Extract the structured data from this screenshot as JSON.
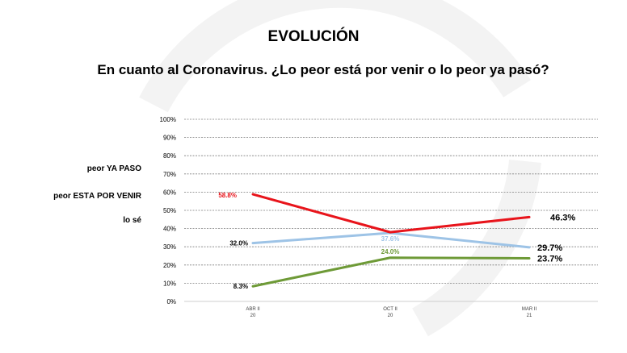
{
  "chart_data": {
    "type": "line",
    "title": "EVOLUCIÓN",
    "subtitle": "En cuanto al Coronavirus. ¿Lo peor está por venir o lo peor ya pasó?",
    "categories": [
      {
        "line1": "ABR II",
        "line2": "20"
      },
      {
        "line1": "OCT II",
        "line2": "20"
      },
      {
        "line1": "MAR II",
        "line2": "21"
      }
    ],
    "ylim": [
      0,
      100
    ],
    "y_ticks": [
      "0%",
      "10%",
      "20%",
      "30%",
      "40%",
      "50%",
      "60%",
      "70%",
      "80%",
      "90%",
      "100%"
    ],
    "grid": true,
    "legend_position": "left",
    "legend": [
      "peor YA PASÓ",
      "peor ESTÁ POR VENIR",
      "lo sé"
    ],
    "series": [
      {
        "key": "red",
        "color": "#e8141b",
        "values": [
          58.8,
          38.0,
          46.3
        ],
        "labels": [
          "58.8%",
          "",
          "46.3%"
        ]
      },
      {
        "key": "lightblue",
        "color": "#9dc3e6",
        "values": [
          32.0,
          37.6,
          29.7
        ],
        "labels": [
          "32.0%",
          "37.6%",
          "29.7%"
        ]
      },
      {
        "key": "green",
        "color": "#6e9a37",
        "values": [
          8.3,
          24.0,
          23.7
        ],
        "labels": [
          "8.3%",
          "24.0%",
          "23.7%"
        ]
      }
    ]
  }
}
